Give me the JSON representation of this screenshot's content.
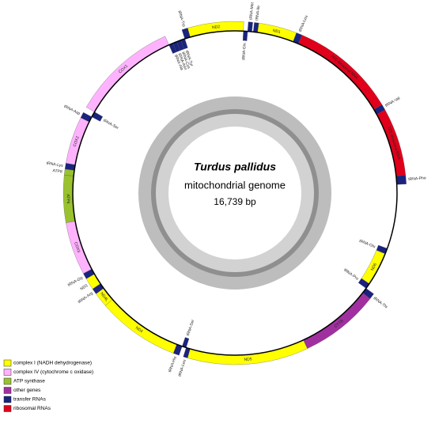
{
  "title": "Turdus pallidus",
  "subtitle": "mitochondrial genome",
  "size_label": "16,739 bp",
  "genes": [
    {
      "label": "tRNA-Phe",
      "color": "#1a237e"
    },
    {
      "label": "12S ribosomal RNA",
      "color": "#e0001b"
    },
    {
      "label": "tRNA-Val",
      "color": "#1a237e"
    },
    {
      "label": "16S ribosomal RNA",
      "color": "#e0001b"
    },
    {
      "label": "tRNA-Leu",
      "color": "#1a237e"
    },
    {
      "label": "ND1",
      "color": "#ffff00"
    },
    {
      "label": "tRNA-Ile",
      "color": "#1a237e"
    },
    {
      "label": "tRNA-Gln",
      "color": "#1a237e"
    },
    {
      "label": "tRNA-Met",
      "color": "#1a237e"
    },
    {
      "label": "ND2",
      "color": "#ffff00"
    },
    {
      "label": "tRNA-Trp",
      "color": "#1a237e"
    },
    {
      "label": "tRNA-Ala",
      "color": "#1a237e"
    },
    {
      "label": "tRNA-Asn",
      "color": "#1a237e"
    },
    {
      "label": "tRNA-Cys",
      "color": "#1a237e"
    },
    {
      "label": "tRNA-Tyr",
      "color": "#1a237e"
    },
    {
      "label": "COX1",
      "color": "#ffb3ff"
    },
    {
      "label": "tRNA-Ser",
      "color": "#1a237e"
    },
    {
      "label": "tRNA-Asp",
      "color": "#1a237e"
    },
    {
      "label": "COX2",
      "color": "#ffb3ff"
    },
    {
      "label": "tRNA-Lys",
      "color": "#1a237e"
    },
    {
      "label": "ATP8",
      "color": "#99c22e"
    },
    {
      "label": "ATP6",
      "color": "#99c22e"
    },
    {
      "label": "COX3",
      "color": "#ffb3ff"
    },
    {
      "label": "tRNA-Gly",
      "color": "#1a237e"
    },
    {
      "label": "ND3",
      "color": "#ffff00"
    },
    {
      "label": "tRNA-Arg",
      "color": "#1a237e"
    },
    {
      "label": "ND4L",
      "color": "#ffff00"
    },
    {
      "label": "ND4",
      "color": "#ffff00"
    },
    {
      "label": "tRNA-His",
      "color": "#1a237e"
    },
    {
      "label": "tRNA-Ser",
      "color": "#1a237e"
    },
    {
      "label": "tRNA-Leu",
      "color": "#1a237e"
    },
    {
      "label": "ND5",
      "color": "#ffff00"
    },
    {
      "label": "CYTB",
      "color": "#a0309f"
    },
    {
      "label": "tRNA-Thr",
      "color": "#1a237e"
    },
    {
      "label": "tRNA-Pro",
      "color": "#1a237e"
    },
    {
      "label": "ND6",
      "color": "#ffff00"
    },
    {
      "label": "tRNA-Glu",
      "color": "#1a237e"
    }
  ],
  "legend": [
    {
      "label": "complex I (NADH dehydrogenase)",
      "color": "#ffff00"
    },
    {
      "label": "complex IV (cytochrome c oxidase)",
      "color": "#ffb3ff"
    },
    {
      "label": "ATP synthase",
      "color": "#99c22e"
    },
    {
      "label": "other genes",
      "color": "#a0309f"
    },
    {
      "label": "transfer RNAs",
      "color": "#1a237e"
    },
    {
      "label": "ribosomal RNAs",
      "color": "#e0001b"
    }
  ]
}
